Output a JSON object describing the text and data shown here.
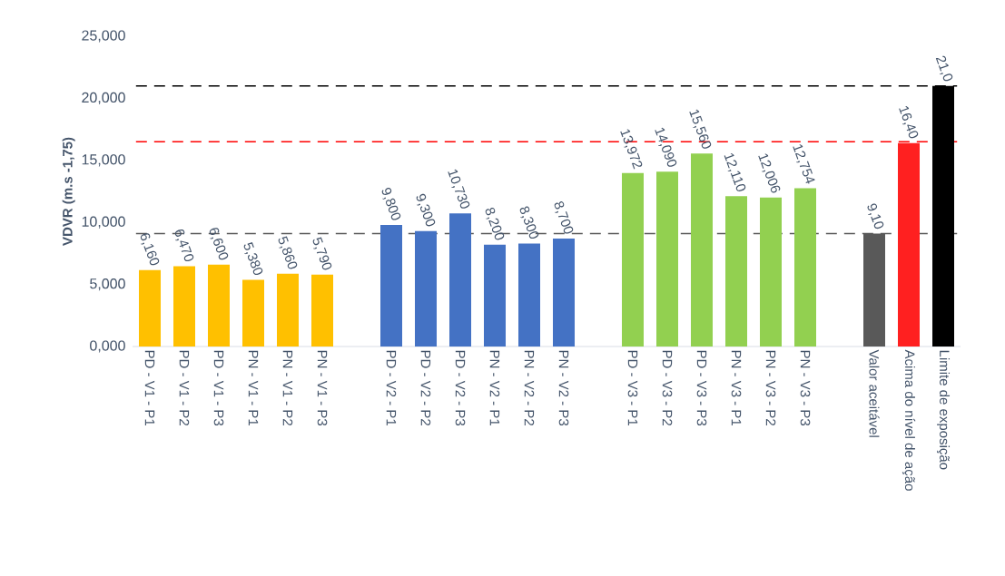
{
  "chart_data": {
    "type": "bar",
    "ylabel": "VDVR (m.s -1,75)",
    "categories": [
      "PD - V1 - P1",
      "PD - V1 - P2",
      "PD - V1 - P3",
      "PN - V1 - P1",
      "PN - V1 - P2",
      "PN - V1 - P3",
      null,
      "PD - V2 - P1",
      "PD - V2 - P2",
      "PD - V2 - P3",
      "PN - V2 - P1",
      "PN - V2 - P2",
      "PN - V2 - P3",
      null,
      "PD - V3 - P1",
      "PD - V3 - P2",
      "PD - V3 - P3",
      "PN - V3 - P1",
      "PN - V3 - P2",
      "PN - V3 - P3",
      null,
      "Valor aceitável",
      "Acima do nível de ação",
      "Limite de exposição"
    ],
    "values": [
      6.16,
      6.47,
      6.6,
      5.38,
      5.86,
      5.79,
      null,
      9.8,
      9.3,
      10.73,
      8.2,
      8.3,
      8.7,
      null,
      13.972,
      14.09,
      15.56,
      12.11,
      12.006,
      12.754,
      null,
      9.1,
      16.4,
      21.0
    ],
    "value_labels": [
      "6,160",
      "6,470",
      "6,600",
      "5,380",
      "5,860",
      "5,790",
      null,
      "9,800",
      "9,300",
      "10,730",
      "8,200",
      "8,300",
      "8,700",
      null,
      "13,972",
      "14,090",
      "15,560",
      "12,110",
      "12,006",
      "12,754",
      null,
      "9,10",
      "16,40",
      "21,0"
    ],
    "colors": [
      "#ffc000",
      "#ffc000",
      "#ffc000",
      "#ffc000",
      "#ffc000",
      "#ffc000",
      null,
      "#4472c4",
      "#4472c4",
      "#4472c4",
      "#4472c4",
      "#4472c4",
      "#4472c4",
      null,
      "#92d050",
      "#92d050",
      "#92d050",
      "#92d050",
      "#92d050",
      "#92d050",
      null,
      "#595959",
      "#ff2020",
      "#000000"
    ],
    "ylim": [
      0,
      25
    ],
    "yticks": [
      {
        "value": 0,
        "label": "0,000"
      },
      {
        "value": 5,
        "label": "5,000"
      },
      {
        "value": 10,
        "label": "10,000"
      },
      {
        "value": 15,
        "label": "15,000"
      },
      {
        "value": 20,
        "label": "20,000"
      },
      {
        "value": 25,
        "label": "25,000"
      }
    ],
    "ref_lines": [
      {
        "axis": "y",
        "value": 21.0,
        "color": "#000000",
        "line_style": "dashed"
      },
      {
        "axis": "y",
        "value": 16.5,
        "color": "#ff0000",
        "line_style": "dashed"
      },
      {
        "axis": "y",
        "value": 9.1,
        "color": "#595959",
        "line_style": "dashed"
      }
    ],
    "grid": false
  }
}
